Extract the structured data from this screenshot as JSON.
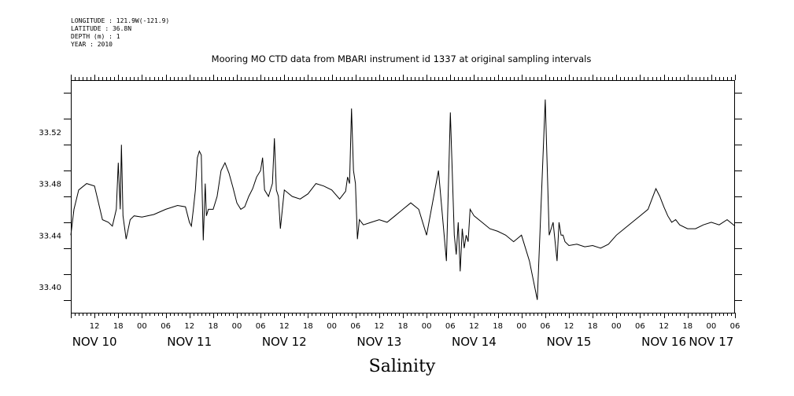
{
  "meta": {
    "longitude": "LONGITUDE : 121.9W(-121.9)",
    "latitude": "LATITUDE : 36.8N",
    "depth": "DEPTH (m) : 1",
    "year": "YEAR : 2010"
  },
  "chart_data": {
    "type": "line",
    "title": "Mooring MO CTD data from MBARI instrument id 1337 at original sampling intervals",
    "xlabel": "Salinity",
    "ylabel": "",
    "ylim": [
      33.38,
      33.56
    ],
    "yticks": [
      33.4,
      33.44,
      33.48,
      33.52
    ],
    "ytick_labels": [
      "33.40",
      "33.44",
      "33.48",
      "33.52"
    ],
    "xlim_hours": [
      6,
      174
    ],
    "x_hour_ticks": [
      12,
      18,
      24,
      30,
      36,
      42,
      48,
      54,
      60,
      66,
      72,
      78,
      84,
      90,
      96,
      102,
      108,
      114,
      120,
      126,
      132,
      138,
      144,
      150,
      156,
      162,
      168,
      174
    ],
    "x_hour_tick_labels": [
      "12",
      "18",
      "00",
      "06",
      "12",
      "18",
      "00",
      "06",
      "12",
      "18",
      "00",
      "06",
      "12",
      "18",
      "00",
      "06",
      "12",
      "18",
      "00",
      "06",
      "12",
      "18",
      "00",
      "06",
      "12",
      "18",
      "00",
      "06"
    ],
    "day_labels": [
      {
        "label": "NOV 10",
        "hour": 12
      },
      {
        "label": "NOV 11",
        "hour": 36
      },
      {
        "label": "NOV 12",
        "hour": 60
      },
      {
        "label": "NOV 13",
        "hour": 84
      },
      {
        "label": "NOV 14",
        "hour": 108
      },
      {
        "label": "NOV 15",
        "hour": 132
      },
      {
        "label": "NOV 16",
        "hour": 156
      },
      {
        "label": "NOV 17",
        "hour": 168
      }
    ],
    "time_origin": "NOV 10 00",
    "series": [
      {
        "x": [
          6.0,
          6.8,
          8.0,
          10.0,
          12.0,
          13.0,
          14.0,
          15.5,
          16.5,
          17.5,
          18.0,
          18.5,
          18.8,
          19.2,
          20.0,
          21.0,
          22.0,
          24.0,
          27.0,
          30.0,
          33.0,
          35.0,
          36.0,
          36.5,
          37.0,
          37.5,
          38.0,
          38.5,
          39.0,
          39.5,
          40.0,
          40.3,
          40.8,
          42.0,
          43.0,
          44.0,
          45.0,
          46.0,
          47.0,
          48.0,
          49.0,
          50.0,
          51.0,
          52.0,
          53.0,
          54.0,
          54.5,
          55.0,
          56.0,
          57.0,
          57.5,
          58.0,
          58.5,
          59.0,
          60.0,
          62.0,
          64.0,
          66.0,
          68.0,
          70.0,
          72.0,
          74.0,
          75.5,
          76.0,
          76.5,
          77.0,
          77.5,
          78.0,
          78.5,
          79.0,
          80.0,
          82.0,
          84.0,
          86.0,
          88.0,
          90.0,
          92.0,
          94.0,
          96.0,
          99.0,
          101.0,
          102.0,
          103.0,
          103.5,
          104.0,
          104.5,
          105.0,
          105.5,
          106.0,
          106.5,
          107.0,
          108.0,
          110.0,
          112.0,
          114.0,
          116.0,
          118.0,
          120.0,
          122.0,
          124.0,
          126.0,
          127.0,
          128.0,
          129.0,
          129.5,
          130.0,
          130.5,
          131.0,
          132.0,
          134.0,
          136.0,
          138.0,
          140.0,
          142.0,
          144.0,
          146.0,
          148.0,
          150.0,
          152.0,
          154.0,
          155.0,
          156.0,
          157.0,
          158.0,
          159.0,
          160.0,
          162.0,
          164.0,
          166.0,
          168.0,
          170.0,
          172.0,
          174.0
        ],
        "values": [
          33.44,
          33.46,
          33.475,
          33.48,
          33.478,
          33.465,
          33.452,
          33.45,
          33.447,
          33.46,
          33.496,
          33.46,
          33.51,
          33.455,
          33.437,
          33.452,
          33.455,
          33.454,
          33.456,
          33.46,
          33.463,
          33.462,
          33.45,
          33.447,
          33.46,
          33.475,
          33.5,
          33.505,
          33.502,
          33.436,
          33.48,
          33.455,
          33.46,
          33.46,
          33.47,
          33.49,
          33.496,
          33.488,
          33.477,
          33.465,
          33.46,
          33.462,
          33.47,
          33.476,
          33.485,
          33.49,
          33.5,
          33.475,
          33.47,
          33.48,
          33.515,
          33.475,
          33.47,
          33.445,
          33.475,
          33.47,
          33.468,
          33.472,
          33.48,
          33.478,
          33.475,
          33.468,
          33.474,
          33.485,
          33.48,
          33.538,
          33.49,
          33.48,
          33.437,
          33.452,
          33.448,
          33.45,
          33.452,
          33.45,
          33.455,
          33.46,
          33.465,
          33.46,
          33.44,
          33.49,
          33.42,
          33.535,
          33.44,
          33.425,
          33.45,
          33.412,
          33.445,
          33.43,
          33.44,
          33.435,
          33.46,
          33.455,
          33.45,
          33.445,
          33.443,
          33.44,
          33.435,
          33.44,
          33.42,
          33.39,
          33.545,
          33.44,
          33.45,
          33.42,
          33.45,
          33.44,
          33.44,
          33.435,
          33.432,
          33.433,
          33.431,
          33.432,
          33.43,
          33.433,
          33.44,
          33.445,
          33.45,
          33.455,
          33.46,
          33.476,
          33.47,
          33.462,
          33.455,
          33.45,
          33.452,
          33.448,
          33.445,
          33.445,
          33.448,
          33.45,
          33.448,
          33.452,
          33.447
        ]
      }
    ]
  }
}
